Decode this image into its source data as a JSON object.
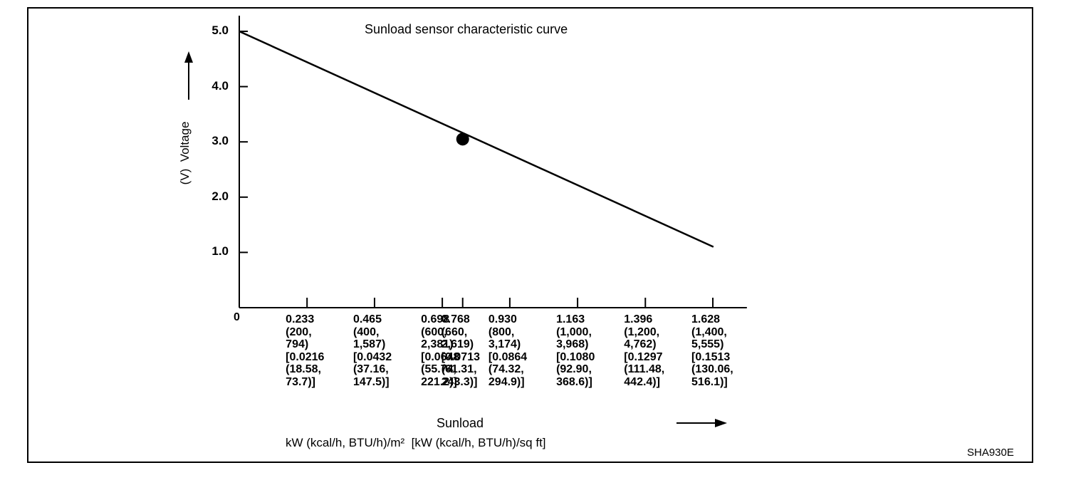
{
  "chart_data": {
    "type": "line",
    "title": "Sunload sensor characteristic curve",
    "xlabel": "Sunload",
    "xunits": "kW (kcal/h, BTU/h)/m²  [kW (kcal/h, BTU/h)/sq ft]",
    "ylabel": "(V)  Voltage",
    "xlim": [
      0,
      1.745
    ],
    "ylim": [
      0,
      5.3
    ],
    "yticks": [
      "1.0",
      "2.0",
      "3.0",
      "4.0",
      "5.0"
    ],
    "xticks": [
      {
        "value": 0.233,
        "label": "0.233\n(200,\n794)\n[0.0216\n(18.58,\n73.7)]"
      },
      {
        "value": 0.465,
        "label": "0.465\n(400,\n1,587)\n[0.0432\n(37.16,\n147.5)]"
      },
      {
        "value": 0.698,
        "label": "0.698\n(600,\n2,381)\n[0.0648\n(55.74,\n221.2)]"
      },
      {
        "value": 0.768,
        "label": "0.768\n(660,\n2,619)\n[0.0713\n(61.31,\n243.3)]"
      },
      {
        "value": 0.93,
        "label": "0.930\n(800,\n3,174)\n[0.0864\n(74.32,\n294.9)]"
      },
      {
        "value": 1.163,
        "label": "1.163\n(1,000,\n3,968)\n[0.1080\n(92.90,\n368.6)]"
      },
      {
        "value": 1.396,
        "label": "1.396\n(1,200,\n4,762)\n[0.1297\n(111.48,\n442.4)]"
      },
      {
        "value": 1.628,
        "label": "1.628\n(1,400,\n5,555)\n[0.1513\n(130.06,\n516.1)]"
      }
    ],
    "origin_label": "0",
    "series": [
      {
        "x": [
          0,
          1.63
        ],
        "y": [
          5.0,
          1.1
        ]
      }
    ],
    "marker": {
      "x": 0.768,
      "y": 3.05
    },
    "grid": false,
    "legend": "none"
  },
  "figure_code": "SHA930E"
}
